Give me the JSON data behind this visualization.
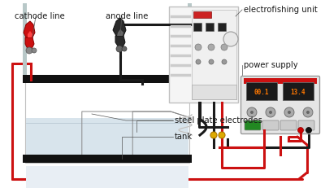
{
  "bg_color": "#ffffff",
  "labels": {
    "cathode_line": "cathode line",
    "anode_line": "anode line",
    "electrofishing_unit": "electrofishing unit",
    "power_supply": "power supply",
    "steel_plate_electrodes": "steel plate electrodes",
    "tank": "tank"
  },
  "colors": {
    "red_wire": "#cc1111",
    "black_wire": "#1a1a1a",
    "tank_water_top": "#d0dde5",
    "tank_water_bot": "#e8eef2",
    "electrode_bar": "#111111",
    "clamp_red": "#cc1111",
    "clamp_black": "#2a2a2a",
    "label_color": "#1a1a1a",
    "wire_yellow": "#ddaa00",
    "eu_bg": "#f2f2f2",
    "eu_border": "#aaaaaa",
    "ps_bg": "#e0e0e0",
    "ps_border": "#999999",
    "display_bg": "#111111",
    "display_text": "#ff6600",
    "green_btn": "#2a8a2a"
  },
  "figsize": [
    4.0,
    2.31
  ],
  "dpi": 100
}
